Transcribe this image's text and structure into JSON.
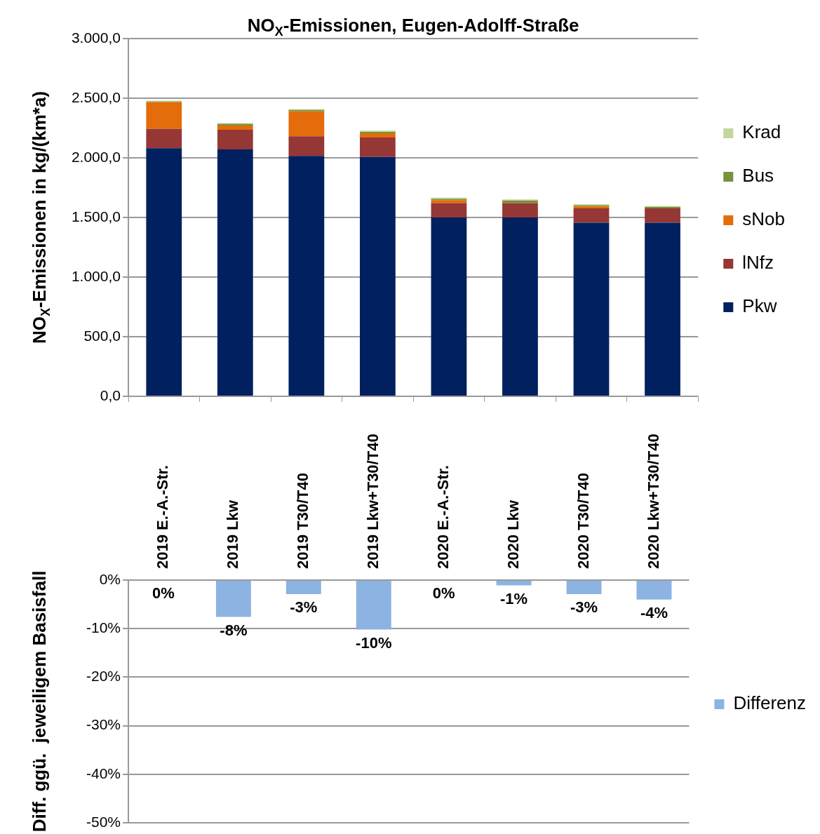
{
  "chart_data": [
    {
      "type": "bar",
      "title": "NO$_{X}$-Emissionen, Eugen-Adolff-Straße",
      "ylabel": "NO$_{X}$-Emissionen in kg/(km*a)",
      "stacked": true,
      "categories": [
        null,
        null,
        null,
        null,
        null,
        null,
        null,
        null
      ],
      "series": [
        {
          "name": "Pkw",
          "color": "#002060",
          "values": [
            2081,
            2071,
            2016,
            2008,
            1500,
            1500,
            1456,
            1456
          ]
        },
        {
          "name": "lNfz",
          "color": "#953735",
          "values": [
            162,
            165,
            165,
            163,
            121,
            121,
            120,
            120
          ]
        },
        {
          "name": "sNob",
          "color": "#e46c0a",
          "values": [
            224,
            35,
            208,
            35,
            25,
            0,
            16,
            0
          ]
        },
        {
          "name": "Bus",
          "color": "#77933c",
          "values": [
            5,
            14,
            12,
            12,
            10,
            20,
            10,
            12
          ]
        },
        {
          "name": "Krad",
          "color": "#c3d69b",
          "values": [
            8,
            6,
            8,
            10,
            10,
            10,
            10,
            8
          ]
        }
      ],
      "ylim": [
        0,
        3000
      ],
      "yticks": [
        {
          "value": 0,
          "label": "0,0"
        },
        {
          "value": 500,
          "label": "500,0"
        },
        {
          "value": 1000,
          "label": "1.000,0"
        },
        {
          "value": 1500,
          "label": "1.500,0"
        },
        {
          "value": 2000,
          "label": "2.000,0"
        },
        {
          "value": 2500,
          "label": "2.500,0"
        },
        {
          "value": 3000,
          "label": "3.000,0"
        }
      ],
      "grid": "y",
      "legend": "right",
      "tick_labels": "y"
    },
    {
      "type": "bar",
      "ylabel": "Diff. ggü.  jeweiligem Basisfall",
      "categories": [
        "2019 E.-A.-Str.",
        "2019 Lkw",
        "2019 T30/T40",
        "2019 Lkw+T30/T40",
        "2020 E.-A.-Str.",
        "2020 Lkw",
        "2020 T30/T40",
        "2020 Lkw+T30/T40"
      ],
      "series": [
        {
          "name": "Differenz",
          "color": "#8db3e2",
          "values": [
            0,
            -7.6,
            -2.9,
            -10.2,
            0,
            -1.1,
            -2.9,
            -4.0
          ],
          "value_labels": [
            "0%",
            "-8%",
            "-3%",
            "-10%",
            "0%",
            "-1%",
            "-3%",
            "-4%"
          ]
        }
      ],
      "ylim": [
        -50,
        0
      ],
      "yticks": [
        {
          "value": -50,
          "label": "-50%"
        },
        {
          "value": -40,
          "label": "-40%"
        },
        {
          "value": -30,
          "label": "-30%"
        },
        {
          "value": -20,
          "label": "-20%"
        },
        {
          "value": -10,
          "label": "-10%"
        },
        {
          "value": 0,
          "label": "0%"
        }
      ],
      "grid": "y",
      "legend": "right"
    }
  ]
}
